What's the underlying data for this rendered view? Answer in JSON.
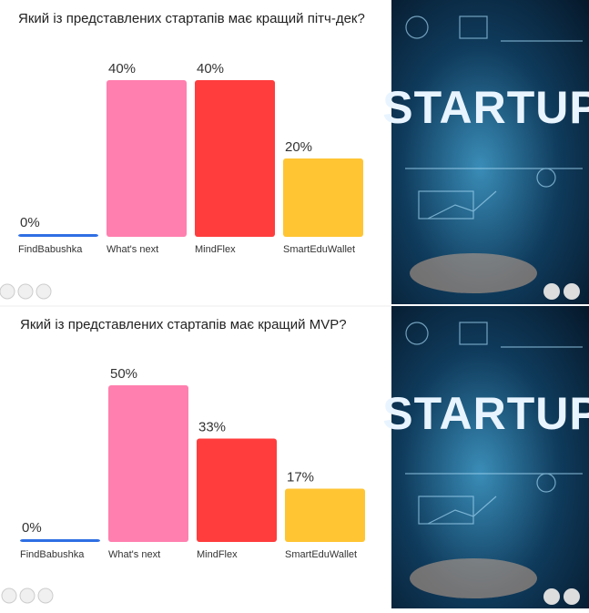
{
  "chart_data": [
    {
      "type": "bar",
      "title": "Який із представлених стартапів має кращий пітч-дек?",
      "categories": [
        "FindBabushka",
        "What's next",
        "MindFlex",
        "SmartEduWallet"
      ],
      "values": [
        0,
        40,
        40,
        20
      ],
      "value_labels": [
        "0%",
        "40%",
        "40%",
        "20%"
      ],
      "colors": [
        "#2f6fe4",
        "#ff7fae",
        "#ff3d3d",
        "#ffc533"
      ]
    },
    {
      "type": "bar",
      "title": "Який із представлених стартапів має кращий MVP?",
      "categories": [
        "FindBabushka",
        "What's next",
        "MindFlex",
        "SmartEduWallet"
      ],
      "values": [
        0,
        50,
        33,
        17
      ],
      "value_labels": [
        "0%",
        "50%",
        "33%",
        "17%"
      ],
      "colors": [
        "#2f6fe4",
        "#ff7fae",
        "#ff3d3d",
        "#ffc533"
      ]
    }
  ],
  "side_images": [
    "STARTUP",
    "STARTUP"
  ]
}
